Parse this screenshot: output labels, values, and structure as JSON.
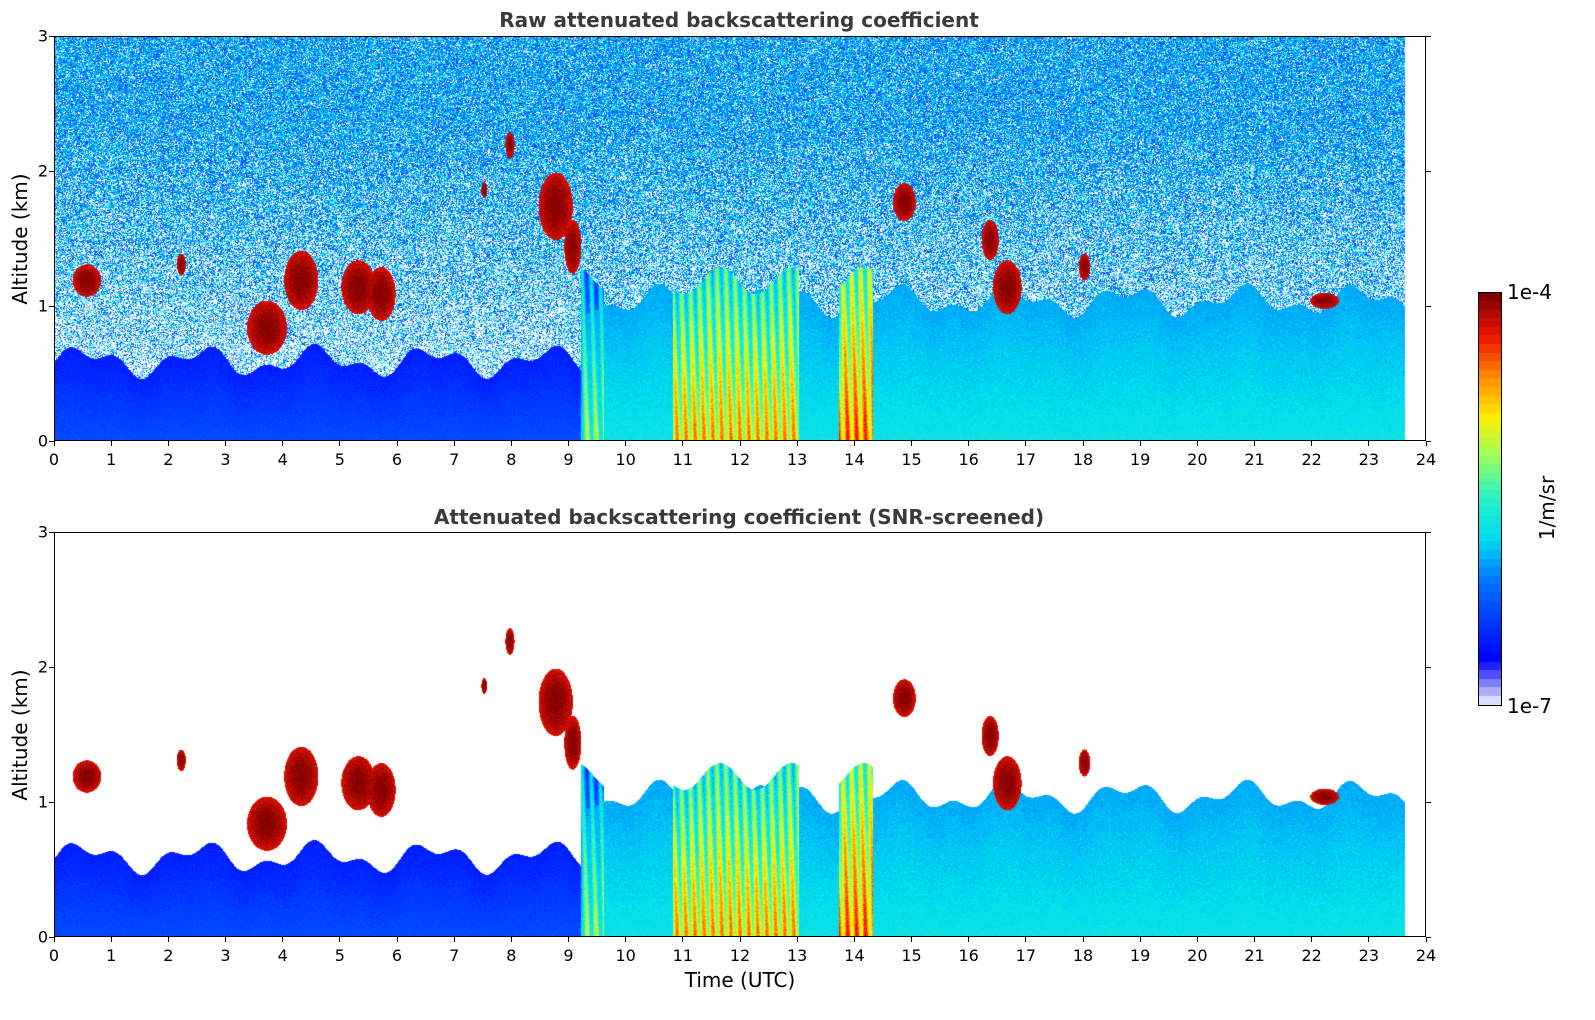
{
  "chart_data": [
    {
      "type": "heatmap",
      "title": "Raw attenuated backscattering coefficient",
      "xlabel": "",
      "ylabel": "Altitude (km)",
      "xlim": [
        0,
        24
      ],
      "ylim": [
        0,
        3
      ],
      "xticks": [
        "0",
        "1",
        "2",
        "3",
        "4",
        "5",
        "6",
        "7",
        "8",
        "9",
        "10",
        "11",
        "12",
        "13",
        "14",
        "15",
        "16",
        "17",
        "18",
        "19",
        "20",
        "21",
        "22",
        "23",
        "24"
      ],
      "yticks": [
        "0",
        "1",
        "2",
        "3"
      ],
      "data_end_time": 23.6,
      "screened": false,
      "features": [
        {
          "kind": "boundary_layer",
          "x0": 0.0,
          "x1": 9.3,
          "top": 0.6,
          "level": 0.15
        },
        {
          "kind": "boundary_layer",
          "x0": 9.3,
          "x1": 23.6,
          "top": 1.05,
          "level": 0.35
        },
        {
          "kind": "dense_layer",
          "x0": 9.2,
          "x1": 9.6,
          "top": 1.2,
          "level": 0.55
        },
        {
          "kind": "dense_layer",
          "x0": 10.8,
          "x1": 13.0,
          "top": 1.2,
          "level": 0.72
        },
        {
          "kind": "dense_layer",
          "x0": 13.7,
          "x1": 14.3,
          "top": 1.2,
          "level": 0.8
        },
        {
          "kind": "cloud",
          "x": 0.55,
          "y": 1.2,
          "w": 0.25,
          "h": 0.12
        },
        {
          "kind": "cloud",
          "x": 2.2,
          "y": 1.32,
          "w": 0.08,
          "h": 0.08
        },
        {
          "kind": "cloud",
          "x": 3.7,
          "y": 0.85,
          "w": 0.35,
          "h": 0.2
        },
        {
          "kind": "cloud",
          "x": 4.3,
          "y": 1.2,
          "w": 0.3,
          "h": 0.22
        },
        {
          "kind": "cloud",
          "x": 5.3,
          "y": 1.15,
          "w": 0.3,
          "h": 0.2
        },
        {
          "kind": "cloud",
          "x": 5.7,
          "y": 1.1,
          "w": 0.25,
          "h": 0.2
        },
        {
          "kind": "cloud",
          "x": 7.95,
          "y": 2.2,
          "w": 0.08,
          "h": 0.1
        },
        {
          "kind": "cloud",
          "x": 7.5,
          "y": 1.87,
          "w": 0.05,
          "h": 0.06
        },
        {
          "kind": "cloud",
          "x": 8.75,
          "y": 1.75,
          "w": 0.3,
          "h": 0.25
        },
        {
          "kind": "cloud",
          "x": 9.05,
          "y": 1.45,
          "w": 0.15,
          "h": 0.2
        },
        {
          "kind": "cloud",
          "x": 14.85,
          "y": 1.78,
          "w": 0.2,
          "h": 0.14
        },
        {
          "kind": "cloud",
          "x": 16.35,
          "y": 1.5,
          "w": 0.15,
          "h": 0.15
        },
        {
          "kind": "cloud",
          "x": 16.65,
          "y": 1.15,
          "w": 0.25,
          "h": 0.2
        },
        {
          "kind": "cloud",
          "x": 18.0,
          "y": 1.3,
          "w": 0.1,
          "h": 0.1
        },
        {
          "kind": "cloud",
          "x": 22.2,
          "y": 1.05,
          "w": 0.25,
          "h": 0.06
        }
      ]
    },
    {
      "type": "heatmap",
      "title": "Attenuated backscattering coefficient (SNR-screened)",
      "xlabel": "Time (UTC)",
      "ylabel": "Altitude (km)",
      "xlim": [
        0,
        24
      ],
      "ylim": [
        0,
        3
      ],
      "xticks": [
        "0",
        "1",
        "2",
        "3",
        "4",
        "5",
        "6",
        "7",
        "8",
        "9",
        "10",
        "11",
        "12",
        "13",
        "14",
        "15",
        "16",
        "17",
        "18",
        "19",
        "20",
        "21",
        "22",
        "23",
        "24"
      ],
      "yticks": [
        "0",
        "1",
        "2",
        "3"
      ],
      "data_end_time": 23.6,
      "screened": true
    }
  ],
  "colorbar": {
    "max_label": "1e-4",
    "min_label": "1e-7",
    "unit_label": "1/m/sr"
  }
}
